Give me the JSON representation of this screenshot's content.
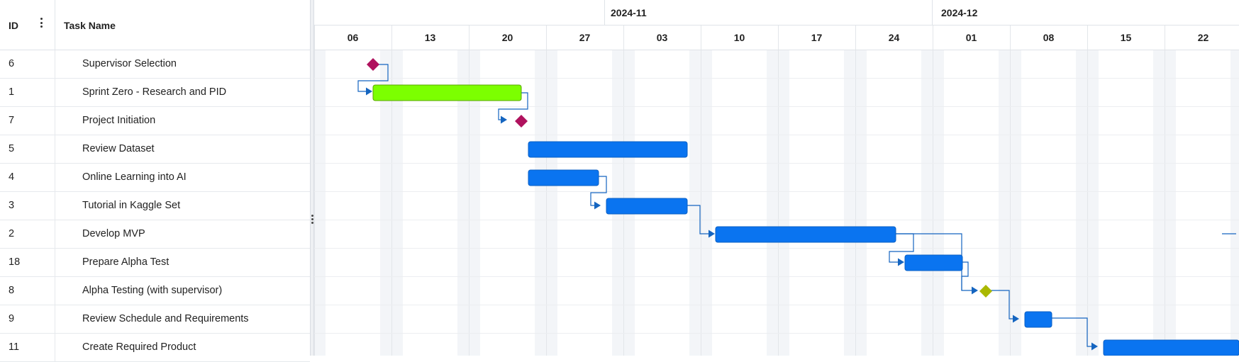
{
  "grid": {
    "header": {
      "id_label": "ID",
      "name_label": "Task Name"
    },
    "rows": [
      {
        "id": "6",
        "name": "Supervisor Selection"
      },
      {
        "id": "1",
        "name": "Sprint Zero - Research and PID"
      },
      {
        "id": "7",
        "name": "Project Initiation"
      },
      {
        "id": "5",
        "name": "Review Dataset"
      },
      {
        "id": "4",
        "name": "Online Learning into AI"
      },
      {
        "id": "3",
        "name": "Tutorial in Kaggle Set"
      },
      {
        "id": "2",
        "name": "Develop MVP"
      },
      {
        "id": "18",
        "name": "Prepare Alpha Test"
      },
      {
        "id": "8",
        "name": "Alpha Testing (with supervisor)"
      },
      {
        "id": "9",
        "name": "Review Schedule and Requirements"
      },
      {
        "id": "11",
        "name": "Create Required Product"
      }
    ]
  },
  "timeline": {
    "months": [
      "2024-11",
      "2024-12"
    ],
    "weeks": [
      "06",
      "13",
      "20",
      "27",
      "03",
      "10",
      "17",
      "24",
      "01",
      "08",
      "15",
      "22"
    ]
  },
  "colors": {
    "task": "#0a74f0",
    "task_highlight": "#7cff00",
    "milestone": "#b0125e",
    "milestone_alt": "#aab800",
    "connector": "#1565c0",
    "weekend": "#f3f5f8"
  }
}
